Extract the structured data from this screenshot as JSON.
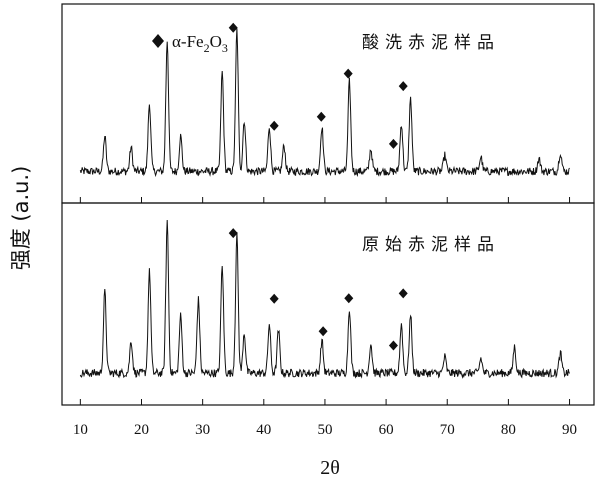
{
  "chart_data": {
    "type": "line",
    "xlabel": "2θ",
    "ylabel": "强度 (a.u.)",
    "xlim": [
      7,
      94
    ],
    "x_ticks": [
      10,
      20,
      30,
      40,
      50,
      60,
      70,
      80,
      90
    ],
    "legend": {
      "marker": "diamond",
      "text_prefix": "α-Fe",
      "sub1": "2",
      "text_mid": "O",
      "sub2": "3"
    },
    "panels": [
      {
        "label": "酸洗赤泥样品",
        "baseline": 0.06,
        "peaks": [
          {
            "x": 14.0,
            "h": 0.22
          },
          {
            "x": 18.3,
            "h": 0.15
          },
          {
            "x": 21.3,
            "h": 0.42
          },
          {
            "x": 24.2,
            "h": 0.82
          },
          {
            "x": 26.4,
            "h": 0.22
          },
          {
            "x": 33.2,
            "h": 0.62
          },
          {
            "x": 35.6,
            "h": 0.88
          },
          {
            "x": 36.8,
            "h": 0.32
          },
          {
            "x": 40.9,
            "h": 0.28
          },
          {
            "x": 43.3,
            "h": 0.16
          },
          {
            "x": 49.5,
            "h": 0.28
          },
          {
            "x": 54.0,
            "h": 0.56
          },
          {
            "x": 57.5,
            "h": 0.14
          },
          {
            "x": 62.5,
            "h": 0.3
          },
          {
            "x": 64.0,
            "h": 0.45
          },
          {
            "x": 69.6,
            "h": 0.1
          },
          {
            "x": 75.5,
            "h": 0.09
          },
          {
            "x": 85.0,
            "h": 0.08
          },
          {
            "x": 88.5,
            "h": 0.12
          }
        ],
        "markers_x": [
          35.0,
          41.7,
          49.4,
          53.8,
          61.2,
          62.8
        ]
      },
      {
        "label": "原始赤泥样品",
        "baseline": 0.06,
        "peaks": [
          {
            "x": 14.0,
            "h": 0.5
          },
          {
            "x": 18.3,
            "h": 0.2
          },
          {
            "x": 21.3,
            "h": 0.62
          },
          {
            "x": 24.2,
            "h": 0.93
          },
          {
            "x": 26.4,
            "h": 0.35
          },
          {
            "x": 29.3,
            "h": 0.45
          },
          {
            "x": 33.2,
            "h": 0.66
          },
          {
            "x": 35.6,
            "h": 0.84
          },
          {
            "x": 36.8,
            "h": 0.25
          },
          {
            "x": 40.9,
            "h": 0.3
          },
          {
            "x": 42.4,
            "h": 0.26
          },
          {
            "x": 49.5,
            "h": 0.2
          },
          {
            "x": 54.0,
            "h": 0.4
          },
          {
            "x": 57.5,
            "h": 0.18
          },
          {
            "x": 62.5,
            "h": 0.3
          },
          {
            "x": 64.0,
            "h": 0.35
          },
          {
            "x": 69.6,
            "h": 0.1
          },
          {
            "x": 75.5,
            "h": 0.09
          },
          {
            "x": 81.0,
            "h": 0.16
          },
          {
            "x": 88.5,
            "h": 0.12
          }
        ],
        "markers_x": [
          35.0,
          41.7,
          49.7,
          53.9,
          61.2,
          62.8
        ]
      }
    ]
  }
}
